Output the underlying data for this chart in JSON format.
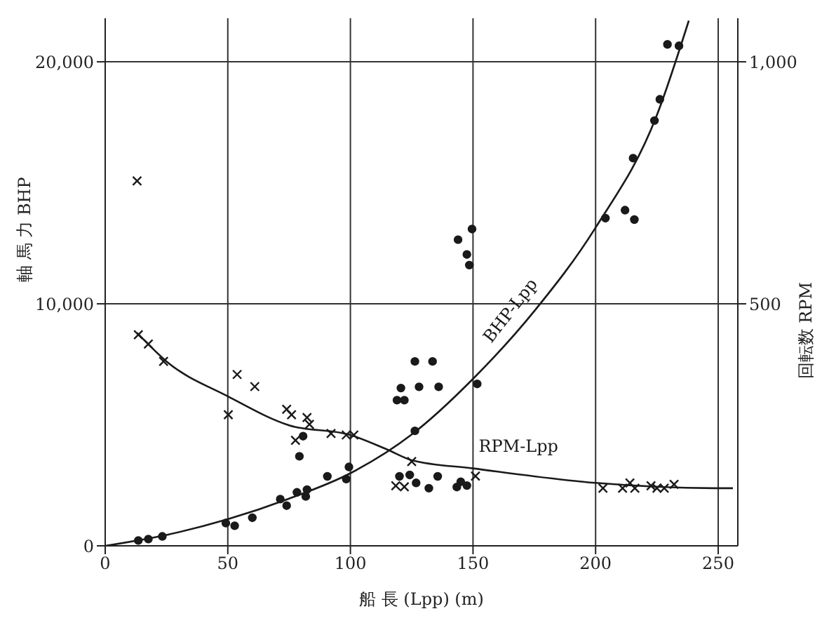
{
  "chart_data": {
    "type": "scatter",
    "xlabel": "船 長 (Lpp) (m)",
    "ylabel": "軸 馬 力  BHP",
    "y2label": "回転数  RPM",
    "xlim": [
      0,
      258
    ],
    "xticks": [
      0,
      50,
      100,
      150,
      200,
      250
    ],
    "ylim": [
      0,
      21800
    ],
    "yticks": [
      0,
      {
        "value": 10000,
        "label": "10,000"
      },
      {
        "value": 20000,
        "label": "20,000"
      }
    ],
    "y2lim": [
      0,
      1090
    ],
    "y2ticks": [
      500,
      {
        "value": 1000,
        "label": "1,000"
      }
    ],
    "grid": true,
    "legend": false,
    "series": [
      {
        "marker": "circle",
        "color": "#1a1a1a",
        "x": [
          13.5,
          17.6,
          23.3,
          49.2,
          52.8,
          60,
          71.4,
          73.5,
          74,
          78.2,
          81.8,
          82.3,
          90.6,
          98.3,
          99.4,
          119,
          122,
          126.3,
          151.7,
          204,
          212,
          215.8,
          215.3,
          224,
          226.2,
          229.3,
          234
        ],
        "values": [
          220,
          280,
          390,
          940,
          830,
          1160,
          1930,
          null,
          1660,
          2210,
          2040,
          2320,
          2870,
          2760,
          3260,
          6020,
          6020,
          4750,
          6690,
          13540,
          13870,
          13480,
          16020,
          17570,
          18450,
          20720,
          20660
        ]
      },
      {
        "marker": "circle",
        "color": "#1a1a1a",
        "x": [
          79.2,
          80.7,
          120,
          124.2,
          126.8,
          132,
          135.6,
          143.4,
          145,
          147.5,
          120.6,
          128,
          126.3,
          133.5,
          136,
          149.6,
          143.9,
          147.5,
          148.5
        ],
        "values": [
          3700,
          4530,
          2870,
          2930,
          2600,
          2380,
          2870,
          2430,
          2650,
          2490,
          6520,
          6570,
          7620,
          7620,
          6570,
          13090,
          12650,
          12040,
          11600
        ]
      },
      {
        "marker": "cross",
        "axis": "y2",
        "color": "#1a1a1a",
        "x": [
          13,
          13.5,
          17.6,
          23.8,
          53.8,
          61,
          50.2,
          74,
          76,
          82.3,
          83.3,
          77.6,
          92.1,
          98.3,
          101.4,
          125,
          118.5,
          122,
          151,
          203,
          211,
          214,
          216,
          222.6,
          225,
          228,
          232
        ],
        "values": [
          754,
          436,
          417,
          381,
          354,
          329,
          271,
          282,
          271,
          265,
          251,
          218,
          232,
          229,
          229,
          174,
          124,
          122,
          144,
          119,
          119,
          130,
          119,
          124,
          119,
          119,
          127
        ]
      },
      {
        "type": "line",
        "name": "BHP-Lpp",
        "color": "#1a1a1a",
        "x": [
          0,
          25,
          50,
          75,
          100,
          125,
          150,
          175,
          200,
          225,
          238
        ],
        "values": [
          0,
          450,
          1100,
          1950,
          3000,
          4600,
          6900,
          9700,
          13150,
          17800,
          21700
        ]
      },
      {
        "type": "line",
        "name": "RPM-Lpp",
        "axis": "y2",
        "color": "#1a1a1a",
        "x": [
          13,
          25,
          50,
          75,
          100,
          115,
          125,
          150,
          200,
          250,
          256
        ],
        "values": [
          440,
          381,
          309,
          249,
          229,
          199,
          177,
          160,
          130,
          119,
          119
        ]
      }
    ]
  }
}
